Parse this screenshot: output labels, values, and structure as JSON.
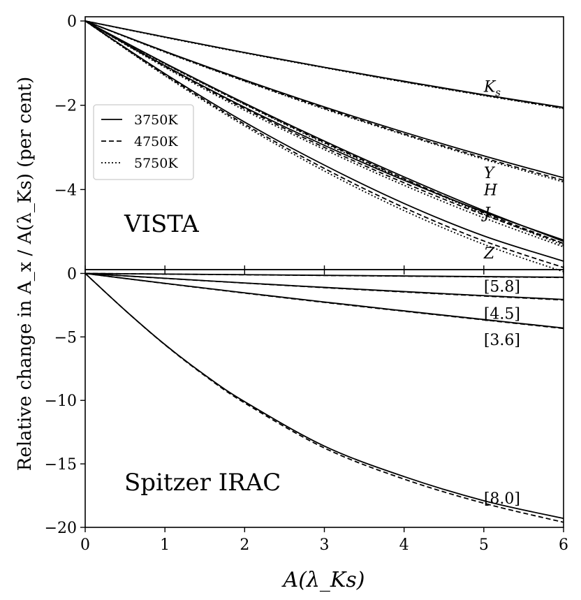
{
  "chart_data": [
    {
      "type": "line",
      "panel": "top",
      "title": "VISTA",
      "xlim": [
        0,
        6
      ],
      "ylim": [
        -5.9,
        0.1
      ],
      "yticks": [
        0,
        -2,
        -4
      ],
      "ytick_labels": [
        "0",
        "−2",
        "−4"
      ],
      "legend": {
        "placement": "upper-left",
        "entries": [
          {
            "label": "3750K",
            "style": "solid"
          },
          {
            "label": "4750K",
            "style": "dashed"
          },
          {
            "label": "5750K",
            "style": "dotted"
          }
        ]
      },
      "series": [
        {
          "name": "Ks 3750K",
          "band": "Ks",
          "style": "solid",
          "x": [
            0,
            1,
            2,
            3,
            4,
            5,
            6
          ],
          "y": [
            0,
            -0.38,
            -0.75,
            -1.1,
            -1.43,
            -1.75,
            -2.05
          ]
        },
        {
          "name": "Ks 4750K",
          "band": "Ks",
          "style": "dashed",
          "x": [
            0,
            1,
            2,
            3,
            4,
            5,
            6
          ],
          "y": [
            0,
            -0.38,
            -0.75,
            -1.1,
            -1.44,
            -1.76,
            -2.07
          ]
        },
        {
          "name": "Ks 5750K",
          "band": "Ks",
          "style": "dotted",
          "x": [
            0,
            1,
            2,
            3,
            4,
            5,
            6
          ],
          "y": [
            0,
            -0.39,
            -0.76,
            -1.11,
            -1.45,
            -1.77,
            -2.08
          ]
        },
        {
          "name": "Y 3750K",
          "band": "Y",
          "style": "solid",
          "x": [
            0,
            1,
            2,
            3,
            4,
            5,
            6
          ],
          "y": [
            0,
            -0.72,
            -1.4,
            -2.04,
            -2.64,
            -3.2,
            -3.72
          ]
        },
        {
          "name": "Y 4750K",
          "band": "Y",
          "style": "dashed",
          "x": [
            0,
            1,
            2,
            3,
            4,
            5,
            6
          ],
          "y": [
            0,
            -0.73,
            -1.42,
            -2.07,
            -2.68,
            -3.25,
            -3.78
          ]
        },
        {
          "name": "Y 5750K",
          "band": "Y",
          "style": "dotted",
          "x": [
            0,
            1,
            2,
            3,
            4,
            5,
            6
          ],
          "y": [
            0,
            -0.74,
            -1.43,
            -2.09,
            -2.7,
            -3.28,
            -3.82
          ]
        },
        {
          "name": "H 3750K",
          "band": "H",
          "style": "solid",
          "x": [
            0,
            1,
            2,
            3,
            4,
            5,
            6
          ],
          "y": [
            0,
            -1.0,
            -1.95,
            -2.85,
            -3.7,
            -4.5,
            -5.23
          ]
        },
        {
          "name": "H 4750K",
          "band": "H",
          "style": "dashed",
          "x": [
            0,
            1,
            2,
            3,
            4,
            5,
            6
          ],
          "y": [
            0,
            -1.01,
            -1.97,
            -2.88,
            -3.74,
            -4.55,
            -5.28
          ]
        },
        {
          "name": "H 5750K",
          "band": "H",
          "style": "dotted",
          "x": [
            0,
            1,
            2,
            3,
            4,
            5,
            6
          ],
          "y": [
            0,
            -1.02,
            -1.98,
            -2.9,
            -3.76,
            -4.58,
            -5.32
          ]
        },
        {
          "name": "J 3750K",
          "band": "J",
          "style": "solid",
          "x": [
            0,
            1,
            2,
            3,
            4,
            5,
            6
          ],
          "y": [
            0,
            -1.06,
            -2.05,
            -2.95,
            -3.78,
            -4.53,
            -5.2
          ]
        },
        {
          "name": "J 4750K",
          "band": "J",
          "style": "dashed",
          "x": [
            0,
            1,
            2,
            3,
            4,
            5,
            6
          ],
          "y": [
            0,
            -1.08,
            -2.08,
            -3.0,
            -3.84,
            -4.6,
            -5.28
          ]
        },
        {
          "name": "J 5750K",
          "band": "J",
          "style": "dotted",
          "x": [
            0,
            1,
            2,
            3,
            4,
            5,
            6
          ],
          "y": [
            0,
            -1.1,
            -2.12,
            -3.05,
            -3.9,
            -4.67,
            -5.36
          ]
        },
        {
          "name": "Z 3750K",
          "band": "Z",
          "style": "solid",
          "x": [
            0,
            1,
            2,
            3,
            4,
            5,
            6
          ],
          "y": [
            0,
            -1.25,
            -2.4,
            -3.42,
            -4.33,
            -5.1,
            -5.7
          ]
        },
        {
          "name": "Z 4750K",
          "band": "Z",
          "style": "dashed",
          "x": [
            0,
            1,
            2,
            3,
            4,
            5,
            6
          ],
          "y": [
            0,
            -1.28,
            -2.45,
            -3.5,
            -4.43,
            -5.22,
            -5.85
          ]
        },
        {
          "name": "Z 5750K",
          "band": "Z",
          "style": "dotted",
          "x": [
            0,
            1,
            2,
            3,
            4,
            5,
            6
          ],
          "y": [
            0,
            -1.3,
            -2.49,
            -3.56,
            -4.5,
            -5.3,
            -5.95
          ]
        }
      ],
      "annotations": [
        {
          "text": "K",
          "sub": "s",
          "x": 5.0,
          "y": -1.55,
          "italic": true
        },
        {
          "text": "Y",
          "sub": "",
          "x": 5.0,
          "y": -3.6,
          "italic": true
        },
        {
          "text": "H",
          "sub": "",
          "x": 5.0,
          "y": -4.0,
          "italic": true
        },
        {
          "text": "J",
          "sub": "",
          "x": 5.0,
          "y": -4.55,
          "italic": true
        },
        {
          "text": "Z",
          "sub": "",
          "x": 5.0,
          "y": -5.5,
          "italic": true
        }
      ]
    },
    {
      "type": "line",
      "panel": "bottom",
      "title": "Spitzer IRAC",
      "xlim": [
        0,
        6
      ],
      "ylim": [
        -20,
        0.3
      ],
      "yticks": [
        0,
        -5,
        -10,
        -15,
        -20
      ],
      "ytick_labels": [
        "0",
        "−5",
        "−10",
        "−15",
        "−20"
      ],
      "xticks": [
        0,
        1,
        2,
        3,
        4,
        5,
        6
      ],
      "xtick_labels": [
        "0",
        "1",
        "2",
        "3",
        "4",
        "5",
        "6"
      ],
      "series": [
        {
          "name": "[5.8] 3750K",
          "band": "[5.8]",
          "style": "solid",
          "x": [
            0,
            6
          ],
          "y": [
            0,
            -0.3
          ]
        },
        {
          "name": "[5.8] 4750K",
          "band": "[5.8]",
          "style": "dashed",
          "x": [
            0,
            6
          ],
          "y": [
            0,
            -0.32
          ]
        },
        {
          "name": "[4.5] 3750K",
          "band": "[4.5]",
          "style": "solid",
          "x": [
            0,
            1,
            2,
            3,
            4,
            5,
            6
          ],
          "y": [
            0,
            -0.38,
            -0.75,
            -1.1,
            -1.43,
            -1.75,
            -2.05
          ]
        },
        {
          "name": "[4.5] 4750K",
          "band": "[4.5]",
          "style": "dashed",
          "x": [
            0,
            1,
            2,
            3,
            4,
            5,
            6
          ],
          "y": [
            0,
            -0.39,
            -0.76,
            -1.12,
            -1.46,
            -1.78,
            -2.09
          ]
        },
        {
          "name": "[3.6] 3750K",
          "band": "[3.6]",
          "style": "solid",
          "x": [
            0,
            1,
            2,
            3,
            4,
            5,
            6
          ],
          "y": [
            0,
            -0.78,
            -1.53,
            -2.25,
            -2.95,
            -3.63,
            -4.3
          ]
        },
        {
          "name": "[3.6] 4750K",
          "band": "[3.6]",
          "style": "dashed",
          "x": [
            0,
            1,
            2,
            3,
            4,
            5,
            6
          ],
          "y": [
            0,
            -0.79,
            -1.55,
            -2.28,
            -2.98,
            -3.66,
            -4.34
          ]
        },
        {
          "name": "[8.0] 3750K",
          "band": "[8.0]",
          "style": "solid",
          "x": [
            0,
            0.5,
            1,
            1.5,
            2,
            3,
            4,
            5,
            6
          ],
          "y": [
            0,
            -2.9,
            -5.6,
            -8.0,
            -10.1,
            -13.6,
            -16.0,
            -17.9,
            -19.3
          ]
        },
        {
          "name": "[8.0] 4750K",
          "band": "[8.0]",
          "style": "dashed",
          "x": [
            0,
            0.5,
            1,
            1.5,
            2,
            3,
            4,
            5,
            6
          ],
          "y": [
            0,
            -2.9,
            -5.62,
            -8.05,
            -10.2,
            -13.75,
            -16.2,
            -18.1,
            -19.6
          ]
        }
      ],
      "annotations": [
        {
          "text": "[5.8]",
          "x": 5.0,
          "y": -1.0
        },
        {
          "text": "[4.5]",
          "x": 5.0,
          "y": -3.15
        },
        {
          "text": "[3.6]",
          "x": 5.0,
          "y": -5.2
        },
        {
          "text": "[8.0]",
          "x": 5.0,
          "y": -17.7
        }
      ]
    }
  ],
  "labels": {
    "ylabel": "Relative change in A_x / A(λ_Ks) (per cent)",
    "xlabel": "A(λ_Ks)",
    "top_panel": "VISTA",
    "bottom_panel": "Spitzer IRAC"
  },
  "colors": {
    "line": "#000000",
    "background": "#ffffff",
    "legend_border": "#cccccc"
  }
}
